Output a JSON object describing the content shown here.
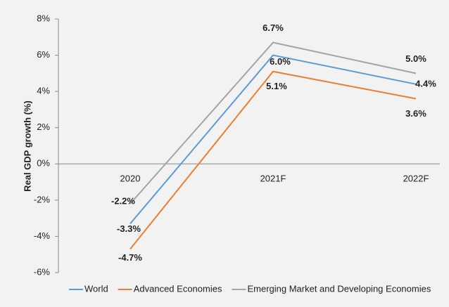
{
  "chart_data": {
    "type": "line",
    "y_label": "Real GDP growth (%)",
    "categories": [
      "2020",
      "2021F",
      "2022F"
    ],
    "series": [
      {
        "name": "World",
        "color": "#5b9bd5",
        "values": [
          -3.3,
          6.0,
          4.4
        ],
        "value_labels": [
          "-3.3%",
          "6.0%",
          "4.4%"
        ]
      },
      {
        "name": "Advanced Economies",
        "color": "#ed7d31",
        "values": [
          -4.7,
          5.1,
          3.6
        ],
        "value_labels": [
          "-4.7%",
          "5.1%",
          "3.6%"
        ]
      },
      {
        "name": "Emerging Market and Developing Economies",
        "color": "#a5a5a5",
        "values": [
          -2.2,
          6.7,
          5.0
        ],
        "value_labels": [
          "-2.2%",
          "6.7%",
          "5.0%"
        ]
      }
    ],
    "ylim": [
      -6,
      8
    ],
    "yticks": [
      {
        "value": -6,
        "label": "-6%"
      },
      {
        "value": -4,
        "label": "-4%"
      },
      {
        "value": -2,
        "label": "-2%"
      },
      {
        "value": 0,
        "label": "0%"
      },
      {
        "value": 2,
        "label": "2%"
      },
      {
        "value": 4,
        "label": "4%"
      },
      {
        "value": 6,
        "label": "6%"
      },
      {
        "value": 8,
        "label": "8%"
      }
    ],
    "legend": "bottom"
  }
}
